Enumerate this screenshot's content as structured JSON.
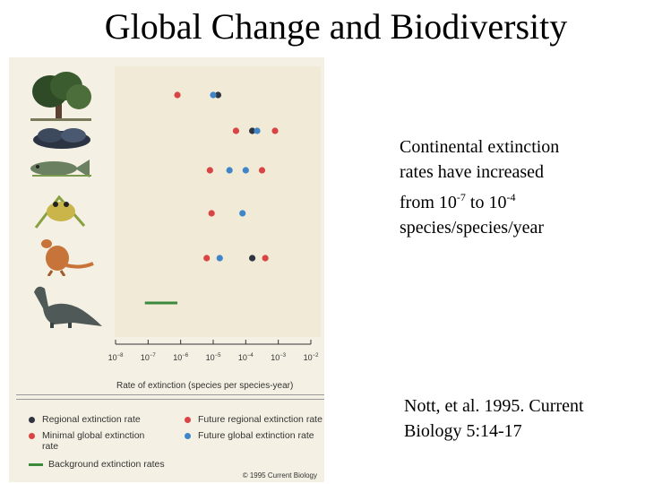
{
  "slide": {
    "title": "Global Change and Biodiversity",
    "text_main": {
      "line1": "Continental extinction",
      "line2": "rates have increased",
      "line3_pre": "from 10",
      "line3_exp1": "-7",
      "line3_mid": " to 10",
      "line3_exp2": "-4",
      "line4": "species/species/year"
    },
    "citation": {
      "line1": "Nott, et al. 1995. Current",
      "line2": "Biology 5:14-17"
    }
  },
  "figure": {
    "row_icons": [
      "tree-icon",
      "mollusc-icon",
      "fish-icon",
      "frog-icon",
      "kangaroo-icon",
      "dinosaur-icon"
    ],
    "legend": {
      "regional": "Regional extinction rate",
      "future_regional": "Future regional extinction rate",
      "minimal_global_line1": "Minimal global extinction",
      "minimal_global_line2": "rate",
      "future_global": "Future global extinction rate",
      "background": "Background extinction rates"
    },
    "copyright": "© 1995 Current Biology"
  },
  "colors": {
    "regional": "#2f3440",
    "minimal_global": "#d94444",
    "future_regional": "#d94444",
    "future_global": "#3f86c8",
    "background": "#3c8a3c"
  },
  "chart_data": {
    "type": "scatter",
    "x_scale": "log",
    "xlabel": "Rate of extinction (species per species-year)",
    "x_tick_exponents": [
      -8,
      -7,
      -6,
      -5,
      -4,
      -3,
      -2
    ],
    "x_tick_base": "10",
    "xlim_exponent": [
      -8,
      -2
    ],
    "rows": [
      "plants",
      "molluscs",
      "fish",
      "amphibians",
      "mammals",
      "reptiles"
    ],
    "series": [
      {
        "key": "regional",
        "points": [
          {
            "row": 0,
            "exp": -4.85
          },
          {
            "row": 1,
            "exp": -3.8
          },
          {
            "row": 4,
            "exp": -3.8
          }
        ]
      },
      {
        "key": "minimal_global",
        "points": [
          {
            "row": 0,
            "exp": -6.1
          },
          {
            "row": 2,
            "exp": -5.1
          },
          {
            "row": 3,
            "exp": -5.05
          },
          {
            "row": 4,
            "exp": -5.2
          }
        ]
      },
      {
        "key": "future_regional",
        "points": [
          {
            "row": 1,
            "exp": -4.3
          },
          {
            "row": 1,
            "exp": -3.1
          },
          {
            "row": 2,
            "exp": -3.5
          },
          {
            "row": 4,
            "exp": -3.4
          }
        ]
      },
      {
        "key": "future_global",
        "points": [
          {
            "row": 0,
            "exp": -5.0
          },
          {
            "row": 1,
            "exp": -3.65
          },
          {
            "row": 2,
            "exp": -4.5
          },
          {
            "row": 2,
            "exp": -4.0
          },
          {
            "row": 3,
            "exp": -4.1
          },
          {
            "row": 4,
            "exp": -4.8
          }
        ]
      }
    ],
    "background_range": [
      {
        "row": 5,
        "exp_from": -7.1,
        "exp_to": -6.1
      }
    ]
  }
}
